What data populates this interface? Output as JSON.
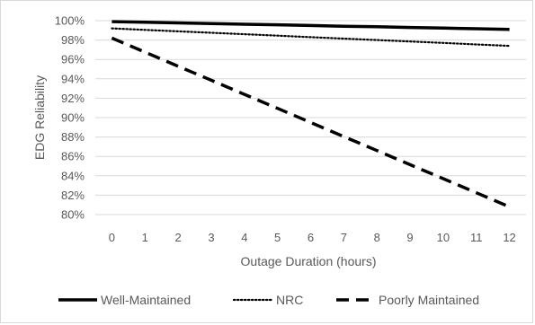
{
  "chart_data": {
    "type": "line",
    "title": "",
    "xlabel": "Outage Duration (hours)",
    "ylabel": "EDG Reliability",
    "x": [
      0,
      1,
      2,
      3,
      4,
      5,
      6,
      7,
      8,
      9,
      10,
      11,
      12
    ],
    "xlim": [
      0,
      12
    ],
    "ylim": [
      80,
      100
    ],
    "y_tick_labels": [
      "80%",
      "82%",
      "84%",
      "86%",
      "88%",
      "90%",
      "92%",
      "94%",
      "96%",
      "98%",
      "100%"
    ],
    "x_tick_labels": [
      "0",
      "1",
      "2",
      "3",
      "4",
      "5",
      "6",
      "7",
      "8",
      "9",
      "10",
      "11",
      "12"
    ],
    "grid": true,
    "legend_position": "bottom",
    "series": [
      {
        "name": "Well-Maintained",
        "style": "solid",
        "color": "#000000",
        "values": [
          99.9,
          99.83,
          99.77,
          99.7,
          99.63,
          99.57,
          99.5,
          99.43,
          99.37,
          99.3,
          99.23,
          99.17,
          99.1
        ]
      },
      {
        "name": "NRC",
        "style": "dotted",
        "color": "#000000",
        "values": [
          99.2,
          99.05,
          98.9,
          98.75,
          98.6,
          98.45,
          98.3,
          98.15,
          98.0,
          97.85,
          97.7,
          97.55,
          97.4
        ]
      },
      {
        "name": "Poorly Maintained",
        "style": "dashed",
        "color": "#000000",
        "values": [
          98.2,
          96.75,
          95.3,
          93.85,
          92.4,
          90.95,
          89.5,
          88.05,
          86.6,
          85.15,
          83.7,
          82.25,
          80.8
        ]
      }
    ]
  }
}
